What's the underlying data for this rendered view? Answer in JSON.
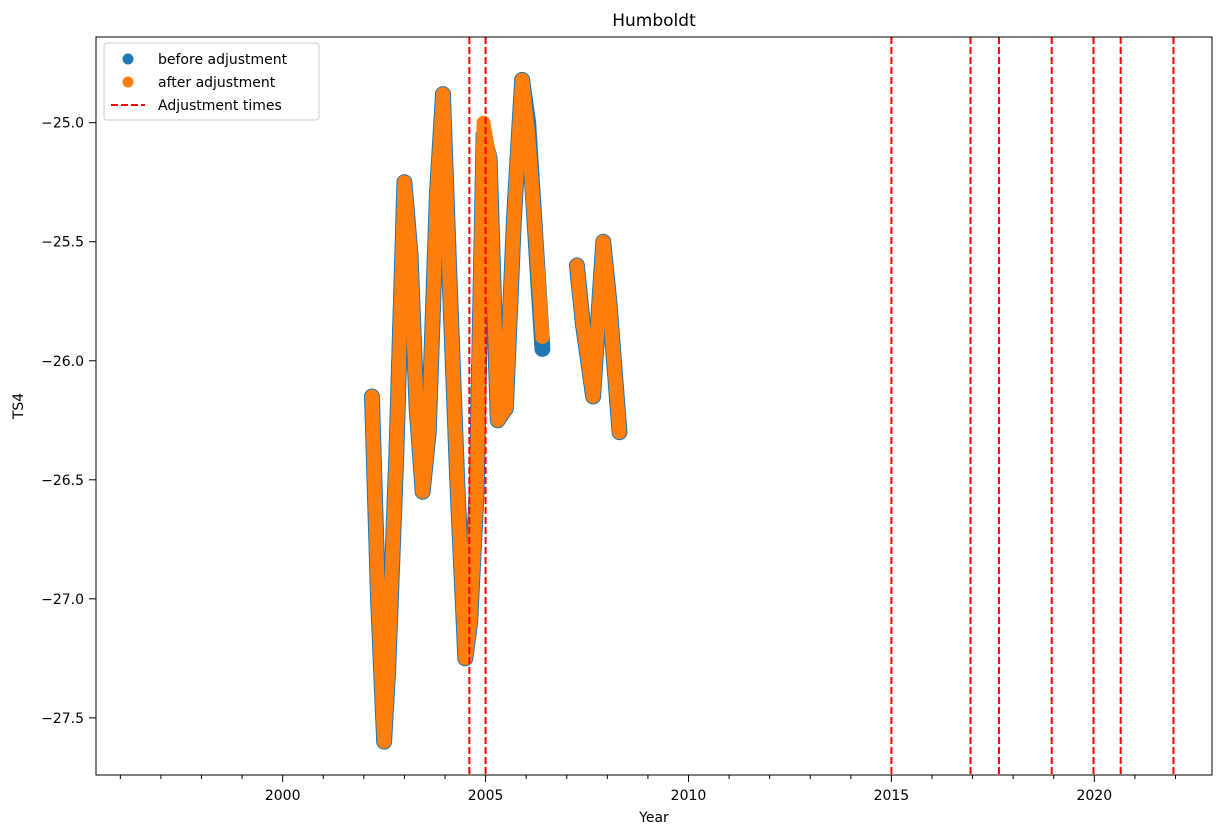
{
  "chart_data": {
    "type": "scatter",
    "title": "Humboldt",
    "xlabel": "Year",
    "ylabel": "TS4",
    "xlim": [
      1995.4,
      2022.9
    ],
    "ylim": [
      -27.74,
      -24.64
    ],
    "xticks": [
      2000,
      2005,
      2010,
      2015,
      2020
    ],
    "yticks": [
      -25.0,
      -25.5,
      -26.0,
      -26.5,
      -27.0,
      -27.5
    ],
    "xtick_labels": [
      "2000",
      "2005",
      "2010",
      "2015",
      "2020"
    ],
    "ytick_labels": [
      "−25.0",
      "−25.5",
      "−26.0",
      "−26.5",
      "−27.0",
      "−27.5"
    ],
    "minor_x_step": 1,
    "grid": false,
    "legend": {
      "position": "top-left",
      "entries": [
        "before adjustment",
        "after adjustment",
        "Adjustment times"
      ]
    },
    "series": [
      {
        "name": "before adjustment",
        "color": "#1f77b4",
        "marker": "circle",
        "x": [
          2002.2,
          2002.35,
          2002.5,
          2002.6,
          2002.8,
          2003.0,
          2003.15,
          2003.3,
          2003.45,
          2003.6,
          2003.8,
          2003.95,
          2004.1,
          2004.3,
          2004.5,
          2004.62,
          2004.78,
          2004.95,
          2005.1,
          2005.3,
          2005.5,
          2005.7,
          2005.9,
          2006.05,
          2006.2,
          2006.4,
          2007.25,
          2007.4,
          2007.65,
          2007.9,
          2008.05,
          2008.3
        ],
        "y": [
          -26.15,
          -27.0,
          -27.6,
          -27.3,
          -26.4,
          -25.25,
          -25.55,
          -26.2,
          -26.55,
          -26.3,
          -25.3,
          -24.88,
          -25.6,
          -26.5,
          -27.25,
          -27.1,
          -26.55,
          -25.05,
          -25.15,
          -26.25,
          -26.2,
          -25.4,
          -24.82,
          -25.0,
          -25.4,
          -25.95,
          -25.6,
          -25.85,
          -26.15,
          -25.5,
          -25.75,
          -26.3
        ]
      },
      {
        "name": "after adjustment",
        "color": "#ff7f0e",
        "marker": "circle",
        "x": [
          2002.2,
          2002.35,
          2002.5,
          2002.6,
          2002.8,
          2003.0,
          2003.15,
          2003.3,
          2003.45,
          2003.6,
          2003.8,
          2003.95,
          2004.1,
          2004.3,
          2004.5,
          2004.62,
          2004.78,
          2004.95,
          2005.1,
          2005.3,
          2005.5,
          2005.7,
          2005.9,
          2006.05,
          2006.2,
          2006.4,
          2007.25,
          2007.4,
          2007.65,
          2007.9,
          2008.05,
          2008.3
        ],
        "y": [
          -26.15,
          -27.0,
          -27.6,
          -27.3,
          -26.4,
          -25.25,
          -25.55,
          -26.2,
          -26.55,
          -26.3,
          -25.3,
          -24.88,
          -25.6,
          -26.5,
          -27.25,
          -27.1,
          -26.55,
          -25.0,
          -25.15,
          -26.25,
          -26.2,
          -25.4,
          -24.82,
          -25.05,
          -25.4,
          -25.9,
          -25.6,
          -25.85,
          -26.15,
          -25.5,
          -25.75,
          -26.3
        ]
      }
    ],
    "adjustment_times": {
      "name": "Adjustment times",
      "color": "#ff0000",
      "style": "dashed",
      "x": [
        2004.6,
        2005.0,
        2015.0,
        2016.95,
        2017.65,
        2018.95,
        2019.98,
        2020.65,
        2021.95
      ]
    }
  }
}
